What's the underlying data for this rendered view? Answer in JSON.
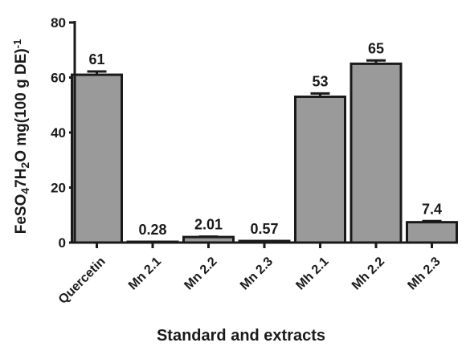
{
  "chart_data": {
    "type": "bar",
    "categories": [
      "Quercetin",
      "Mn 2.1",
      "Mn 2.2",
      "Mn 2.3",
      "Mh 2.1",
      "Mh 2.2",
      "Mh 2.3"
    ],
    "values": [
      61,
      0.28,
      2.01,
      0.57,
      53,
      65,
      7.4
    ],
    "value_labels": [
      "61",
      "0.28",
      "2.01",
      "0.57",
      "53",
      "65",
      "7.4"
    ],
    "errors": [
      1.2,
      0.05,
      0.15,
      0.08,
      1.2,
      1.2,
      0.4
    ],
    "xlabel": "Standard and extracts",
    "ylabel": {
      "parts": [
        {
          "text": "FeSO",
          "shift": "base"
        },
        {
          "text": "4",
          "shift": "sub"
        },
        {
          "text": "7H",
          "shift": "base"
        },
        {
          "text": "2",
          "shift": "sub"
        },
        {
          "text": "O mg(100 g DE)",
          "shift": "base"
        },
        {
          "text": "-1",
          "shift": "super"
        }
      ]
    },
    "yticks": [
      0,
      20,
      40,
      60,
      80
    ],
    "ylim": [
      0,
      80
    ],
    "grid": false,
    "colors": {
      "bar_fill": "#9a9a9a",
      "bar_stroke": "#1a1a1a",
      "axis": "#1a1a1a"
    }
  }
}
